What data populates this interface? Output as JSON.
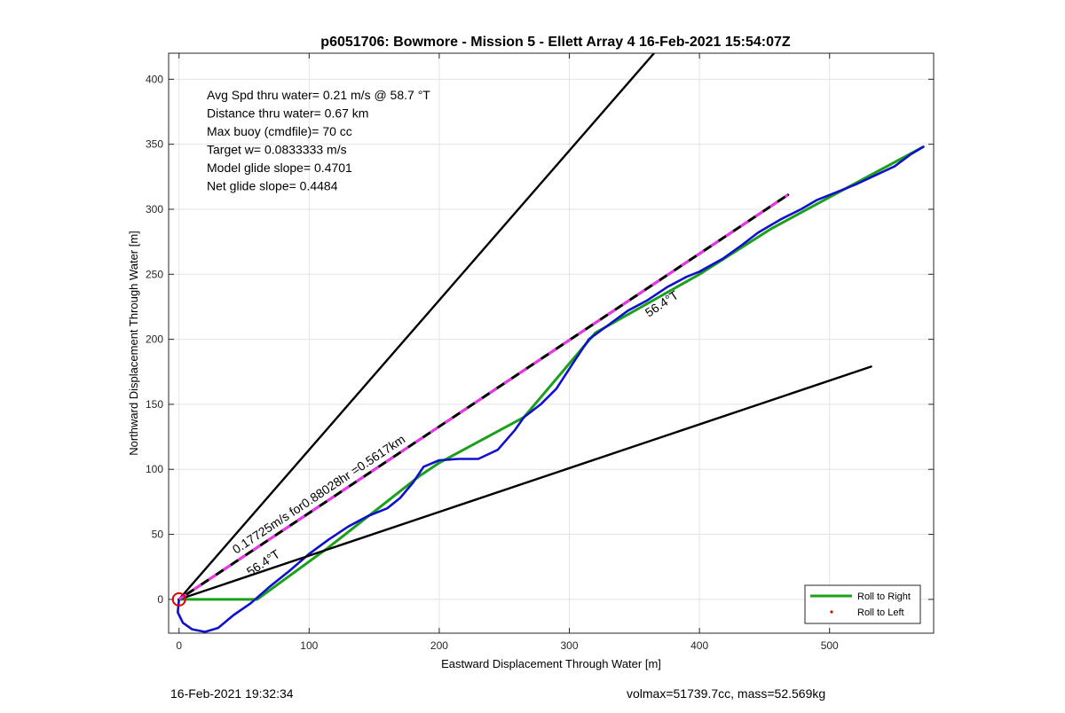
{
  "chart_data": {
    "type": "line",
    "title": "p6051706: Bowmore - Mission 5 - Ellett Array 4 16-Feb-2021 15:54:07Z",
    "xlabel": "Eastward Displacement Through Water [m]",
    "ylabel": "Northward Displacement Through Water [m]",
    "xlim": [
      -8,
      580
    ],
    "ylim": [
      -26,
      420
    ],
    "xticks": [
      0,
      100,
      200,
      300,
      400,
      500
    ],
    "yticks": [
      0,
      50,
      100,
      150,
      200,
      250,
      300,
      350,
      400
    ],
    "grid": true,
    "stats_lines": [
      "Avg Spd thru water=  0.21 m/s @  58.7 °T",
      "Distance thru water=  0.67 km",
      "Max buoy (cmdfile)= 70 cc",
      "Target w= 0.0833333 m/s",
      "Model glide slope= 0.4701",
      "Net glide slope= 0.4484"
    ],
    "annotations": {
      "current": "0.17725m/s for0.88028hr =0.5617km",
      "heading_lower": "56.4°T",
      "heading_track": "56.4°T"
    },
    "legend": {
      "placement": "bottom-right",
      "entries": [
        "Roll to Right",
        "Roll to Left"
      ]
    },
    "series": [
      {
        "name": "Roll to Right",
        "color": "#1aa01a",
        "points": [
          [
            0,
            0
          ],
          [
            60,
            0
          ],
          [
            115,
            40
          ],
          [
            185,
            95
          ],
          [
            200,
            105
          ],
          [
            265,
            140
          ],
          [
            320,
            205
          ],
          [
            400,
            250
          ],
          [
            455,
            285
          ],
          [
            520,
            320
          ],
          [
            572,
            348
          ]
        ]
      },
      {
        "color": "#1010cc",
        "points": [
          [
            0,
            0
          ],
          [
            -1,
            -10
          ],
          [
            3,
            -18
          ],
          [
            10,
            -23
          ],
          [
            20,
            -25
          ],
          [
            30,
            -22
          ],
          [
            42,
            -12
          ],
          [
            55,
            -3
          ],
          [
            70,
            10
          ],
          [
            85,
            22
          ],
          [
            100,
            35
          ],
          [
            115,
            46
          ],
          [
            130,
            56
          ],
          [
            145,
            64
          ],
          [
            160,
            70
          ],
          [
            170,
            78
          ],
          [
            180,
            90
          ],
          [
            188,
            102
          ],
          [
            200,
            107
          ],
          [
            215,
            108
          ],
          [
            230,
            108
          ],
          [
            245,
            115
          ],
          [
            258,
            130
          ],
          [
            265,
            140
          ],
          [
            278,
            150
          ],
          [
            290,
            162
          ],
          [
            305,
            185
          ],
          [
            315,
            200
          ],
          [
            330,
            211
          ],
          [
            345,
            222
          ],
          [
            360,
            230
          ],
          [
            375,
            240
          ],
          [
            390,
            248
          ],
          [
            400,
            252
          ],
          [
            418,
            262
          ],
          [
            432,
            272
          ],
          [
            445,
            282
          ],
          [
            462,
            292
          ],
          [
            478,
            300
          ],
          [
            490,
            307
          ],
          [
            505,
            313
          ],
          [
            520,
            319
          ],
          [
            535,
            326
          ],
          [
            550,
            333
          ],
          [
            562,
            342
          ],
          [
            572,
            348
          ]
        ]
      },
      {
        "color": "#000000",
        "points": [
          [
            0,
            0
          ],
          [
            372,
            428
          ]
        ]
      },
      {
        "color": "#000000",
        "points": [
          [
            0,
            0
          ],
          [
            532,
            179
          ]
        ]
      },
      {
        "color": "#000000",
        "dash_color": "#ee33ee",
        "points": [
          [
            0,
            0
          ],
          [
            468,
            311
          ]
        ]
      }
    ],
    "start_marker": {
      "x": 0,
      "y": 0,
      "color": "#dd0000"
    }
  },
  "footer": {
    "timestamp": "16-Feb-2021 19:32:34",
    "summary": "volmax=51739.7cc, mass=52.569kg"
  }
}
